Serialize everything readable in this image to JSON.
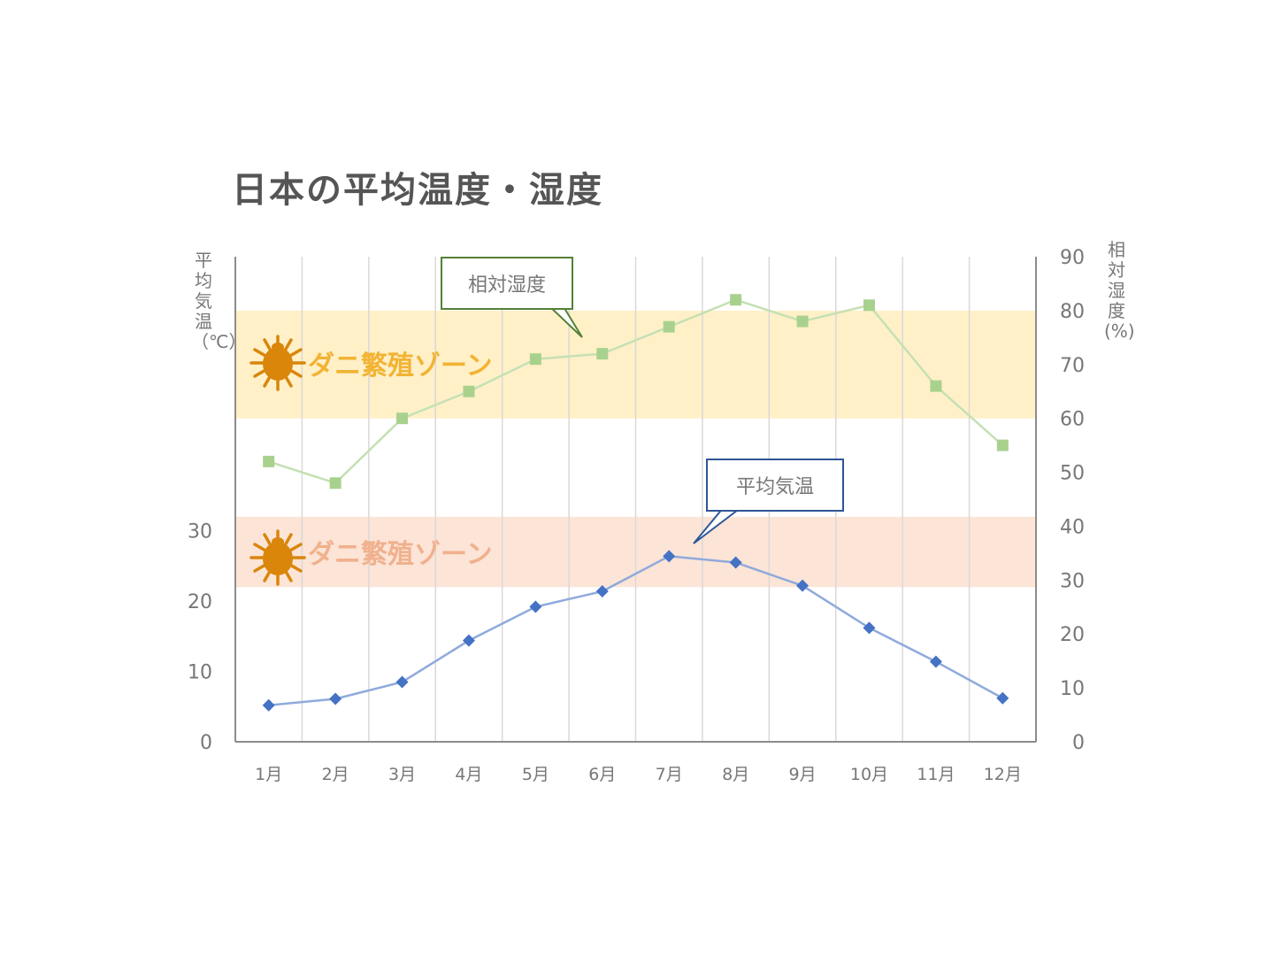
{
  "title": "日本の平均温度・湿度",
  "left_axis_label": "平均気温（℃）",
  "right_axis_label": "相対湿度(%)",
  "callouts": {
    "humidity": "相対湿度",
    "temperature": "平均気温"
  },
  "zones": {
    "humidity_label": "ダニ繁殖ゾーン",
    "temperature_label": "ダニ繁殖ゾーン"
  },
  "icons": {
    "mite": "mite-icon"
  },
  "colors": {
    "temperature_line": "#8faadc",
    "temperature_marker": "#4472c4",
    "humidity_line": "#c5e0b4",
    "humidity_marker": "#a9d18e",
    "humidity_zone": "#fff0c8",
    "temperature_zone": "#fce4d6",
    "mite": "#d9860a"
  },
  "chart_data": {
    "type": "line",
    "title": "日本の平均温度・湿度",
    "categories": [
      "1月",
      "2月",
      "3月",
      "4月",
      "5月",
      "6月",
      "7月",
      "8月",
      "9月",
      "10月",
      "11月",
      "12月"
    ],
    "series": [
      {
        "name": "平均気温",
        "axis": "left",
        "marker": "diamond",
        "values": [
          5.2,
          6.1,
          8.5,
          14.4,
          19.2,
          21.4,
          26.4,
          25.5,
          22.2,
          16.2,
          11.4,
          6.2
        ]
      },
      {
        "name": "相対湿度",
        "axis": "right",
        "marker": "square",
        "values": [
          52,
          48,
          60,
          65,
          71,
          72,
          77,
          82,
          78,
          81,
          66,
          55
        ]
      }
    ],
    "y_left": {
      "label": "平均気温（℃）",
      "ticks": [
        0,
        10,
        20,
        30
      ],
      "range": [
        0,
        69
      ]
    },
    "y_right": {
      "label": "相対湿度(%)",
      "ticks": [
        0,
        10,
        20,
        30,
        40,
        50,
        60,
        70,
        80,
        90
      ],
      "range": [
        0,
        90
      ]
    },
    "zones": [
      {
        "axis": "right",
        "from": 60,
        "to": 80,
        "label": "ダニ繁殖ゾーン"
      },
      {
        "axis": "left",
        "from": 22,
        "to": 32,
        "label": "ダニ繁殖ゾーン"
      }
    ],
    "grid": "vertical",
    "legend": "none"
  }
}
